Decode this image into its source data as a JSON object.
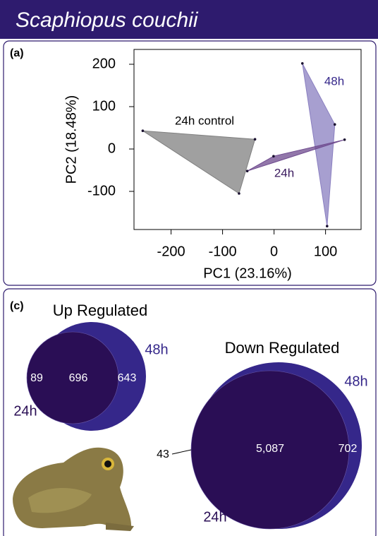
{
  "header": {
    "title": "Scaphiopus couchii"
  },
  "chart_data": [
    {
      "type": "scatter",
      "panel": "(a)",
      "xlabel": "PC1 (23.16%)",
      "ylabel": "PC2 (18.48%)",
      "xlim": [
        -272,
        169
      ],
      "ylim": [
        -190,
        235
      ],
      "xticks": [
        -200,
        -100,
        0,
        100
      ],
      "yticks": [
        -100,
        0,
        100,
        200
      ],
      "series": [
        {
          "name": "24h control",
          "color": "#808080",
          "x": [
            -255,
            -37,
            -68
          ],
          "y": [
            43,
            23,
            -105
          ]
        },
        {
          "name": "48h",
          "color": "#8a7fc0",
          "x": [
            55,
            118,
            103
          ],
          "y": [
            202,
            58,
            -182
          ]
        },
        {
          "name": "24h",
          "color": "#6e4a8e",
          "x": [
            -52,
            -1,
            137
          ],
          "y": [
            -52,
            -17,
            22
          ]
        }
      ]
    },
    {
      "type": "venn",
      "panel": "(c)",
      "title": "Up Regulated",
      "sets": [
        {
          "name": "24h",
          "color": "#2a0e55"
        },
        {
          "name": "48h",
          "color": "#35278a"
        }
      ],
      "values": [
        89,
        696,
        643
      ]
    },
    {
      "type": "venn",
      "title": "Down Regulated",
      "sets": [
        {
          "name": "24h",
          "color": "#2a0e55"
        },
        {
          "name": "48h",
          "color": "#35278a"
        }
      ],
      "values": [
        43,
        5087,
        702
      ],
      "value_labels": [
        "43",
        "5,087",
        "702"
      ]
    }
  ]
}
